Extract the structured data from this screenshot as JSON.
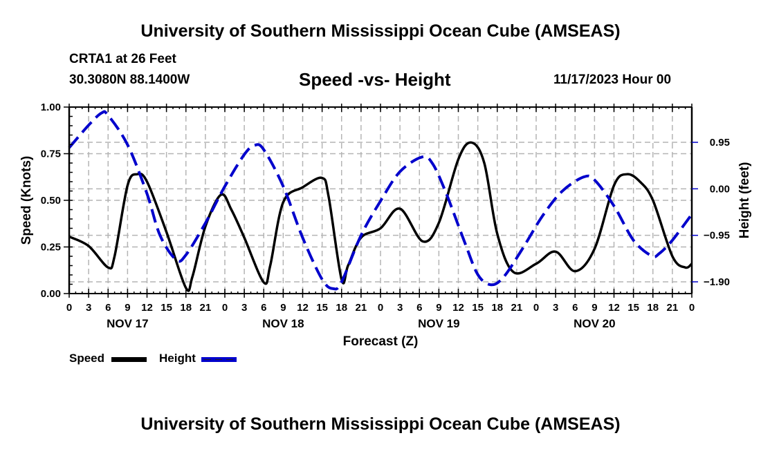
{
  "header": {
    "title": "University of Southern Mississippi Ocean Cube (AMSEAS)",
    "station": "CRTA1 at 26 Feet",
    "coordinates": "30.3080N  88.1400W",
    "subtitle": "Speed -vs- Height",
    "datetime": "11/17/2023 Hour 00"
  },
  "footer": {
    "title": "University of Southern Mississippi Ocean Cube (AMSEAS)"
  },
  "legend": {
    "speed_label": "Speed",
    "height_label": "Height"
  },
  "colors": {
    "speed": "#000000",
    "height": "#0000cc",
    "grid": "#b4b4b4"
  },
  "chart_data": {
    "type": "line",
    "title": "Speed -vs- Height",
    "xlabel": "Forecast (Z)",
    "ylabel": "Speed (Knots)",
    "y2label": "Height (feet)",
    "xlim": [
      0,
      96
    ],
    "ylim": [
      0,
      1.0
    ],
    "y2lim": [
      -2.14,
      1.67
    ],
    "grid": true,
    "legend_position": "bottom-left",
    "x_tick_labels": [
      "0",
      "3",
      "6",
      "9",
      "12",
      "15",
      "18",
      "21",
      "0",
      "3",
      "6",
      "9",
      "12",
      "15",
      "18",
      "21",
      "0",
      "3",
      "6",
      "9",
      "12",
      "15",
      "18",
      "21",
      "0",
      "3",
      "6",
      "9",
      "12",
      "15",
      "18",
      "21",
      "0"
    ],
    "x_tick_hours": [
      0,
      3,
      6,
      9,
      12,
      15,
      18,
      21,
      24,
      27,
      30,
      33,
      36,
      39,
      42,
      45,
      48,
      51,
      54,
      57,
      60,
      63,
      66,
      69,
      72,
      75,
      78,
      81,
      84,
      87,
      90,
      93,
      96
    ],
    "day_labels": [
      {
        "label": "NOV 17",
        "hour": 9
      },
      {
        "label": "NOV 18",
        "hour": 33
      },
      {
        "label": "NOV 19",
        "hour": 57
      },
      {
        "label": "NOV 20",
        "hour": 81
      }
    ],
    "y_ticks": [
      {
        "value": 0.0,
        "label": "0.00"
      },
      {
        "value": 0.25,
        "label": "0.25"
      },
      {
        "value": 0.5,
        "label": "0.50"
      },
      {
        "value": 0.75,
        "label": "0.75"
      },
      {
        "value": 1.0,
        "label": "1.00"
      }
    ],
    "y2_ticks": [
      {
        "value": 0.95,
        "label": "0.95"
      },
      {
        "value": 0.0,
        "label": "0.00"
      },
      {
        "value": -0.95,
        "label": "−0.95"
      },
      {
        "value": -1.9,
        "label": "−1.90"
      }
    ],
    "series": [
      {
        "name": "Speed",
        "axis": "left",
        "style": "solid",
        "x": [
          0,
          3,
          6,
          7,
          9,
          10.5,
          12,
          15,
          18,
          19,
          21,
          23.4,
          25,
          27,
          30,
          31,
          33,
          36,
          39,
          40,
          42,
          43,
          45,
          48,
          51,
          54.5,
          57,
          60,
          62,
          64,
          66,
          68.5,
          72,
          75,
          78,
          81,
          84,
          86,
          88,
          90,
          93,
          95,
          96
        ],
        "values": [
          0.305,
          0.255,
          0.14,
          0.2,
          0.58,
          0.64,
          0.6,
          0.33,
          0.03,
          0.09,
          0.36,
          0.53,
          0.45,
          0.3,
          0.06,
          0.15,
          0.49,
          0.57,
          0.62,
          0.52,
          0.075,
          0.15,
          0.3,
          0.35,
          0.455,
          0.28,
          0.38,
          0.72,
          0.81,
          0.7,
          0.32,
          0.115,
          0.16,
          0.225,
          0.12,
          0.24,
          0.58,
          0.64,
          0.6,
          0.5,
          0.2,
          0.14,
          0.16
        ]
      },
      {
        "name": "Height",
        "axis": "right",
        "style": "dashed",
        "x": [
          0,
          3,
          5,
          6,
          9,
          12,
          14,
          16.5,
          18,
          21,
          24,
          27,
          28.6,
          30,
          33,
          36,
          39,
          40.7,
          42,
          45,
          48,
          51,
          54.4,
          56,
          58,
          61,
          63,
          65,
          67,
          70,
          73,
          76,
          79.3,
          81,
          84,
          87,
          89.8,
          91,
          93,
          96
        ],
        "values": [
          0.84,
          1.3,
          1.55,
          1.5,
          0.9,
          -0.1,
          -0.95,
          -1.45,
          -1.35,
          -0.7,
          0.05,
          0.7,
          0.89,
          0.8,
          0.05,
          -1.0,
          -1.85,
          -2.04,
          -1.9,
          -0.95,
          -0.25,
          0.35,
          0.65,
          0.52,
          -0.05,
          -1.1,
          -1.75,
          -1.96,
          -1.8,
          -1.2,
          -0.55,
          -0.05,
          0.24,
          0.18,
          -0.35,
          -1.05,
          -1.37,
          -1.32,
          -1.05,
          -0.52
        ]
      }
    ]
  }
}
